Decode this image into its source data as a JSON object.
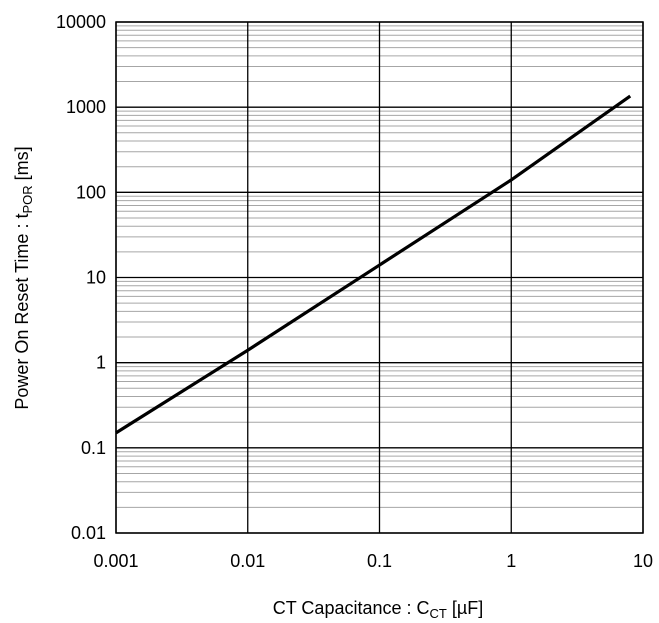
{
  "chart_data": {
    "type": "line",
    "title": "",
    "xlabel": {
      "prefix": "CT Capacitance : C",
      "subscript": "CT",
      "suffix": " [µF]"
    },
    "ylabel": {
      "prefix": "Power On Reset Time : t",
      "subscript": "POR",
      "suffix": " [ms]"
    },
    "x_scale": "log",
    "y_scale": "log",
    "xlim": [
      0.001,
      10
    ],
    "ylim": [
      0.01,
      10000
    ],
    "x_ticks": [
      {
        "value": 0.001,
        "label": "0.001"
      },
      {
        "value": 0.01,
        "label": "0.01"
      },
      {
        "value": 0.1,
        "label": "0.1"
      },
      {
        "value": 1,
        "label": "1"
      },
      {
        "value": 10,
        "label": "10"
      }
    ],
    "y_ticks": [
      {
        "value": 0.01,
        "label": "0.01"
      },
      {
        "value": 0.1,
        "label": "0.1"
      },
      {
        "value": 1,
        "label": "1"
      },
      {
        "value": 10,
        "label": "10"
      },
      {
        "value": 100,
        "label": "100"
      },
      {
        "value": 1000,
        "label": "1000"
      },
      {
        "value": 10000,
        "label": "10000"
      }
    ],
    "grid": {
      "major": true,
      "minor_y": true,
      "minor_x": false
    },
    "series": [
      {
        "color": "#000000",
        "x": [
          0.001,
          0.01,
          0.1,
          1,
          8
        ],
        "y": [
          0.15,
          1.4,
          14,
          140,
          1350
        ]
      }
    ]
  }
}
